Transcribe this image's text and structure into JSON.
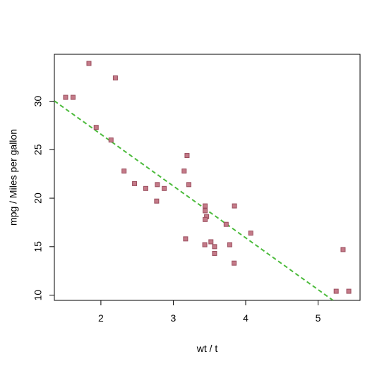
{
  "chart_data": {
    "type": "scatter",
    "x_label": "wt / t",
    "y_label": "mpg / Miles per gallon",
    "x": [
      2.62,
      2.875,
      2.32,
      3.215,
      3.44,
      3.46,
      3.57,
      3.19,
      3.15,
      3.44,
      3.44,
      4.07,
      3.73,
      3.78,
      5.25,
      5.424,
      5.345,
      2.2,
      1.615,
      1.835,
      2.465,
      3.52,
      3.435,
      3.84,
      3.845,
      1.935,
      2.14,
      1.513,
      3.17,
      2.77,
      3.57,
      2.78
    ],
    "values": [
      21.0,
      21.0,
      22.8,
      21.4,
      18.7,
      18.1,
      14.3,
      24.4,
      22.8,
      19.2,
      17.8,
      16.4,
      17.3,
      15.2,
      10.4,
      10.4,
      14.7,
      32.4,
      30.4,
      33.9,
      21.5,
      15.5,
      15.2,
      13.3,
      19.2,
      27.3,
      26.0,
      30.4,
      15.8,
      19.7,
      15.0,
      21.4
    ],
    "color": "#c47a88",
    "edge_color": "#9a4e5e",
    "xlim": [
      1.35736,
      5.57964
    ],
    "ylim": [
      9.46,
      34.84
    ],
    "xticks": [
      2,
      3,
      4,
      5
    ],
    "yticks": [
      10,
      15,
      20,
      25,
      30
    ],
    "trend": {
      "intercept": 37.285,
      "slope": -5.344,
      "color": "#4cbb3c"
    }
  }
}
